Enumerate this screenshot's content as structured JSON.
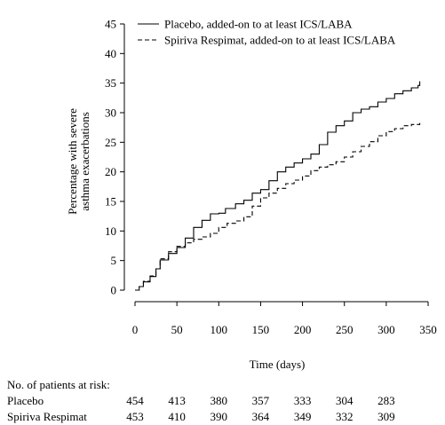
{
  "chart_data": {
    "type": "line",
    "xlabel": "Time (days)",
    "ylabel_line1": "Percentage with severe",
    "ylabel_line2": "asthma exacerbations",
    "xlim": [
      0,
      350
    ],
    "ylim": [
      0,
      45
    ],
    "x_ticks": [
      0,
      50,
      100,
      150,
      200,
      250,
      300,
      350
    ],
    "y_ticks": [
      0,
      5,
      10,
      15,
      20,
      25,
      30,
      35,
      40,
      45
    ],
    "grid": false,
    "legend_position": "top-right",
    "series": [
      {
        "name": "Placebo, added-on to at least ICS/LABA",
        "dash": "solid",
        "points": [
          [
            0,
            0
          ],
          [
            5,
            0.6
          ],
          [
            10,
            1.4
          ],
          [
            18,
            2.3
          ],
          [
            25,
            3.6
          ],
          [
            30,
            5.1
          ],
          [
            40,
            6.2
          ],
          [
            50,
            7.2
          ],
          [
            60,
            8.8
          ],
          [
            70,
            10.6
          ],
          [
            80,
            11.8
          ],
          [
            90,
            12.9
          ],
          [
            100,
            13.0
          ],
          [
            108,
            13.8
          ],
          [
            120,
            14.6
          ],
          [
            130,
            15.2
          ],
          [
            140,
            16.4
          ],
          [
            150,
            17.0
          ],
          [
            160,
            18.5
          ],
          [
            170,
            20.0
          ],
          [
            180,
            20.8
          ],
          [
            190,
            21.5
          ],
          [
            200,
            22.2
          ],
          [
            210,
            23.0
          ],
          [
            220,
            24.6
          ],
          [
            230,
            26.7
          ],
          [
            240,
            27.8
          ],
          [
            250,
            28.6
          ],
          [
            260,
            30.0
          ],
          [
            270,
            30.6
          ],
          [
            280,
            31.0
          ],
          [
            290,
            31.8
          ],
          [
            300,
            32.4
          ],
          [
            310,
            33.2
          ],
          [
            320,
            33.7
          ],
          [
            330,
            34.2
          ],
          [
            338,
            34.6
          ],
          [
            340,
            35.3
          ]
        ]
      },
      {
        "name": "Spiriva Respimat, added-on to at least ICS/LABA",
        "dash": "dashed",
        "points": [
          [
            0,
            0
          ],
          [
            5,
            0.6
          ],
          [
            10,
            1.5
          ],
          [
            18,
            2.4
          ],
          [
            25,
            3.6
          ],
          [
            30,
            5.3
          ],
          [
            40,
            6.5
          ],
          [
            50,
            7.4
          ],
          [
            60,
            8.0
          ],
          [
            70,
            8.6
          ],
          [
            80,
            9.0
          ],
          [
            90,
            9.6
          ],
          [
            100,
            10.6
          ],
          [
            110,
            11.3
          ],
          [
            120,
            11.7
          ],
          [
            130,
            12.4
          ],
          [
            140,
            14.2
          ],
          [
            150,
            15.6
          ],
          [
            160,
            16.4
          ],
          [
            170,
            17.2
          ],
          [
            180,
            18.0
          ],
          [
            190,
            18.6
          ],
          [
            200,
            19.3
          ],
          [
            210,
            20.2
          ],
          [
            220,
            20.8
          ],
          [
            230,
            21.2
          ],
          [
            240,
            21.7
          ],
          [
            250,
            22.5
          ],
          [
            260,
            23.4
          ],
          [
            270,
            24.3
          ],
          [
            280,
            25.1
          ],
          [
            290,
            26.1
          ],
          [
            300,
            26.8
          ],
          [
            310,
            27.3
          ],
          [
            320,
            27.8
          ],
          [
            330,
            28.0
          ],
          [
            340,
            28.4
          ]
        ]
      }
    ]
  },
  "risk_table": {
    "title": "No. of patients at risk:",
    "rows": [
      {
        "label": "Placebo",
        "values": [
          "454",
          "413",
          "380",
          "357",
          "333",
          "304",
          "283"
        ]
      },
      {
        "label": "Spiriva Respimat",
        "values": [
          "453",
          "410",
          "390",
          "364",
          "349",
          "332",
          "309"
        ]
      }
    ]
  }
}
